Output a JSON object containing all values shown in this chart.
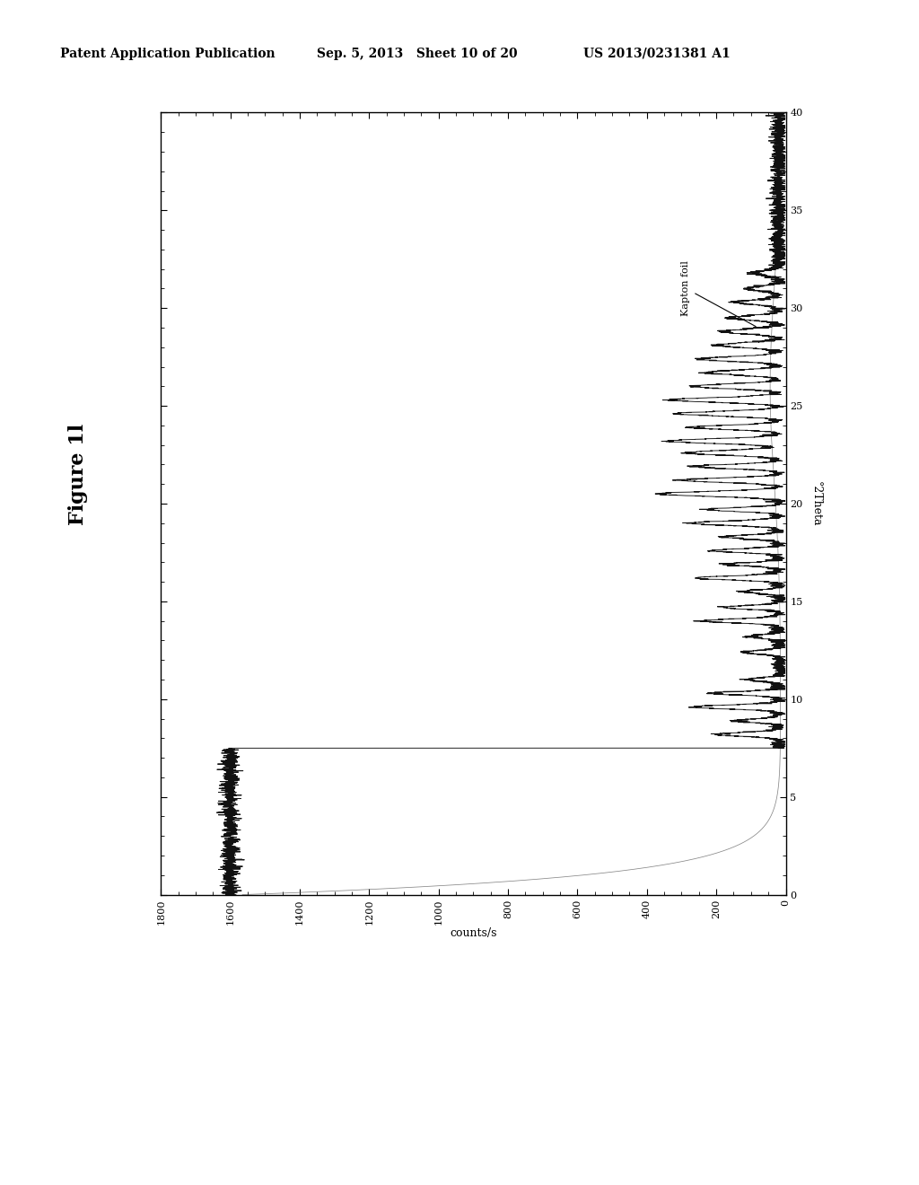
{
  "header_left": "Patent Application Publication",
  "header_mid": "Sep. 5, 2013   Sheet 10 of 20",
  "header_right": "US 2013/0231381 A1",
  "figure_label": "Figure 1l",
  "xlabel_label": "°2Theta",
  "ylabel_label": "counts/s",
  "theta_min": 0,
  "theta_max": 40,
  "counts_min": 0,
  "counts_max": 1800,
  "annotation": "Kapton foil",
  "background_color": "#ffffff",
  "line_color": "#111111",
  "kapton_line_color": "#555555",
  "tick_theta": [
    0,
    5,
    10,
    15,
    20,
    25,
    30,
    35,
    40
  ],
  "tick_counts": [
    0,
    200,
    400,
    600,
    800,
    1000,
    1200,
    1400,
    1600,
    1800
  ],
  "header_fontsize": 10,
  "figure_label_fontsize": 16,
  "axis_label_fontsize": 9,
  "tick_fontsize": 8
}
